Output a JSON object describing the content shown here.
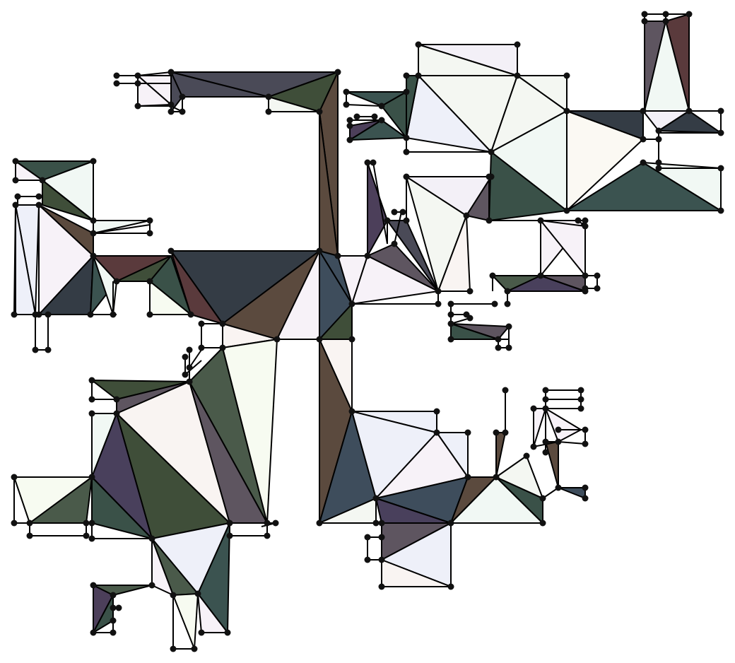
{
  "palette": {
    "background": "#ffffff",
    "stroke": "#000000",
    "vertex": "#111111"
  },
  "fill_names": {
    "light": [
      "#f4f7f2",
      "#f7f2f8",
      "#eef0f9",
      "#f9f4f2",
      "#f1f8f4",
      "#fbf9f3",
      "#f3f0f7",
      "#f7fbf1"
    ],
    "dark": [
      "#343c45",
      "#4a4a57",
      "#3f4e39",
      "#5b4a3e",
      "#3e4d5c",
      "#4c3f5a",
      "#3a5148",
      "#5a3a3c",
      "#4a5a4a",
      "#5e5560",
      "#3b5350",
      "#49405c"
    ]
  }
}
